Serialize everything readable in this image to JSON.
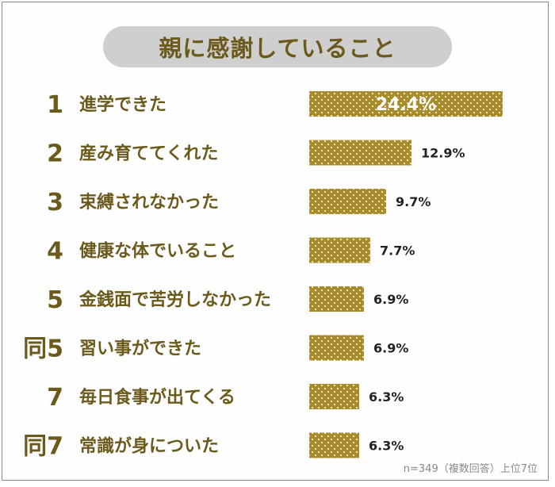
{
  "chart_data": {
    "type": "bar",
    "orientation": "horizontal",
    "title": "親に感謝していること",
    "ranks": [
      "1",
      "2",
      "3",
      "4",
      "5",
      "同5",
      "7",
      "同7"
    ],
    "categories": [
      "進学できた",
      "産み育ててくれた",
      "束縛されなかった",
      "健康な体でいること",
      "金銭面で苦労しなかった",
      "習い事ができた",
      "毎日食事が出てくる",
      "常識が身についた"
    ],
    "values": [
      24.4,
      12.9,
      9.7,
      7.7,
      6.9,
      6.9,
      6.3,
      6.3
    ],
    "value_labels": [
      "24.4%",
      "12.9%",
      "9.7%",
      "7.7%",
      "6.9%",
      "6.9%",
      "6.3%",
      "6.3%"
    ],
    "unit": "%",
    "note": "n=349（複数回答）上位7位",
    "colors": {
      "bar": "#a88c2a",
      "dot": "#ffffff",
      "rank_text": "#6b5a1c",
      "label_text": "#6b5a1c",
      "title_bg": "#cfcfcf"
    }
  }
}
